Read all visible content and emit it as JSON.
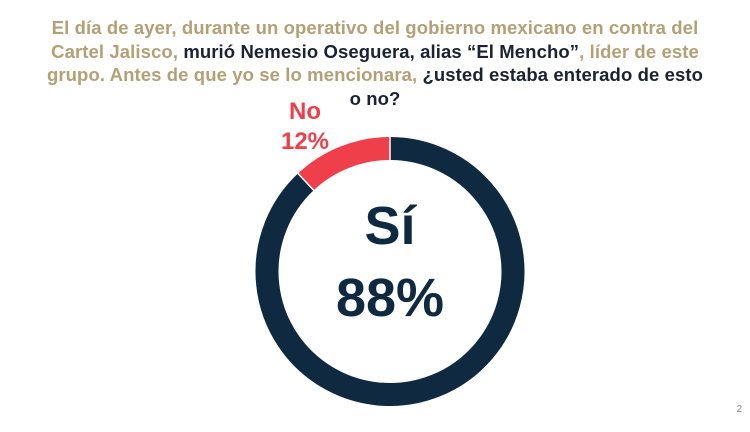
{
  "slide": {
    "page_number": "2",
    "question_parts": [
      {
        "text": "El día de ayer, durante un operativo del gobierno mexicano en contra del Cartel Jalisco, ",
        "style": "gold"
      },
      {
        "text": "murió Nemesio Oseguera, alias “El Mencho”",
        "style": "dark"
      },
      {
        "text": ", líder de este grupo. Antes de que yo se lo mencionara, ",
        "style": "gold"
      },
      {
        "text": "¿usted estaba enterado de esto o no?",
        "style": "dark"
      }
    ]
  },
  "colors": {
    "gold_text": "#B4A075",
    "dark_text": "#1A2234",
    "si_segment": "#0F2A40",
    "no_segment": "#EE3F4B"
  },
  "chart_data": {
    "type": "pie",
    "variant": "donut",
    "title": "El día de ayer, durante un operativo del gobierno mexicano en contra del Cartel Jalisco, murió Nemesio Oseguera, alias “El Mencho”, líder de este grupo. Antes de que yo se lo mencionara, ¿usted estaba enterado de esto o no?",
    "categories": [
      "Sí",
      "No"
    ],
    "values": [
      88,
      12
    ],
    "unit": "%",
    "colors": [
      "#0F2A40",
      "#EE3F4B"
    ],
    "labels": {
      "si": {
        "category": "Sí",
        "value": "88%"
      },
      "no": {
        "category": "No",
        "value": "12%"
      }
    },
    "legend": "none",
    "start_angle_deg": 0,
    "direction": "clockwise"
  }
}
